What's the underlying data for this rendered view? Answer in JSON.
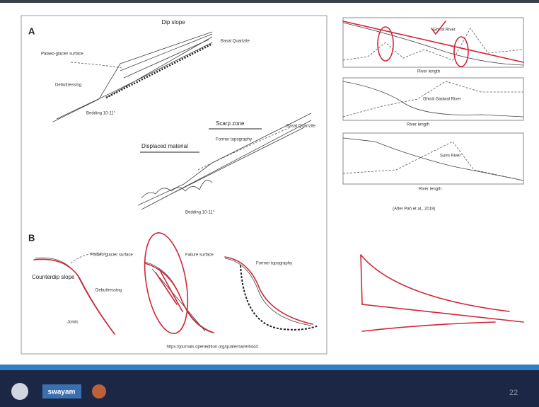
{
  "panel_a": {
    "label": "A",
    "title": "Dip slope",
    "glacier_surface": "Palaeo-glacier surface",
    "debuttressing": "Debuttressing",
    "bedding_upper": "Bedding 10-11°",
    "quartzite_upper": "Basal Quartzite",
    "scarp_zone": "Scarp zone",
    "former_topography": "Former topography",
    "displaced_material": "Displaced material",
    "quartzite_lower": "Basal Quartzite",
    "bedding_lower": "Bedding 10-11°"
  },
  "panel_b": {
    "label": "B",
    "glacier_surface": "Palaeo-glacier surface",
    "counterdip_slope": "Counterdip slope",
    "debuttressing": "Debuttressing",
    "joints": "Joints",
    "failure_surface": "Failure surface",
    "former_topography": "Former topography"
  },
  "source": "https://journals.openedition.org/quaternaire/6444",
  "profiles": [
    {
      "river": "Ghirdi River",
      "x_label": "River length"
    },
    {
      "river": "Ghirdi Gadwal River",
      "x_label": "River length"
    },
    {
      "river": "Sumi River",
      "x_label": "River length"
    }
  ],
  "citation": "(After Pah et al., 2019)",
  "footer": {
    "logo_text": "swayam",
    "page_number": "22"
  }
}
